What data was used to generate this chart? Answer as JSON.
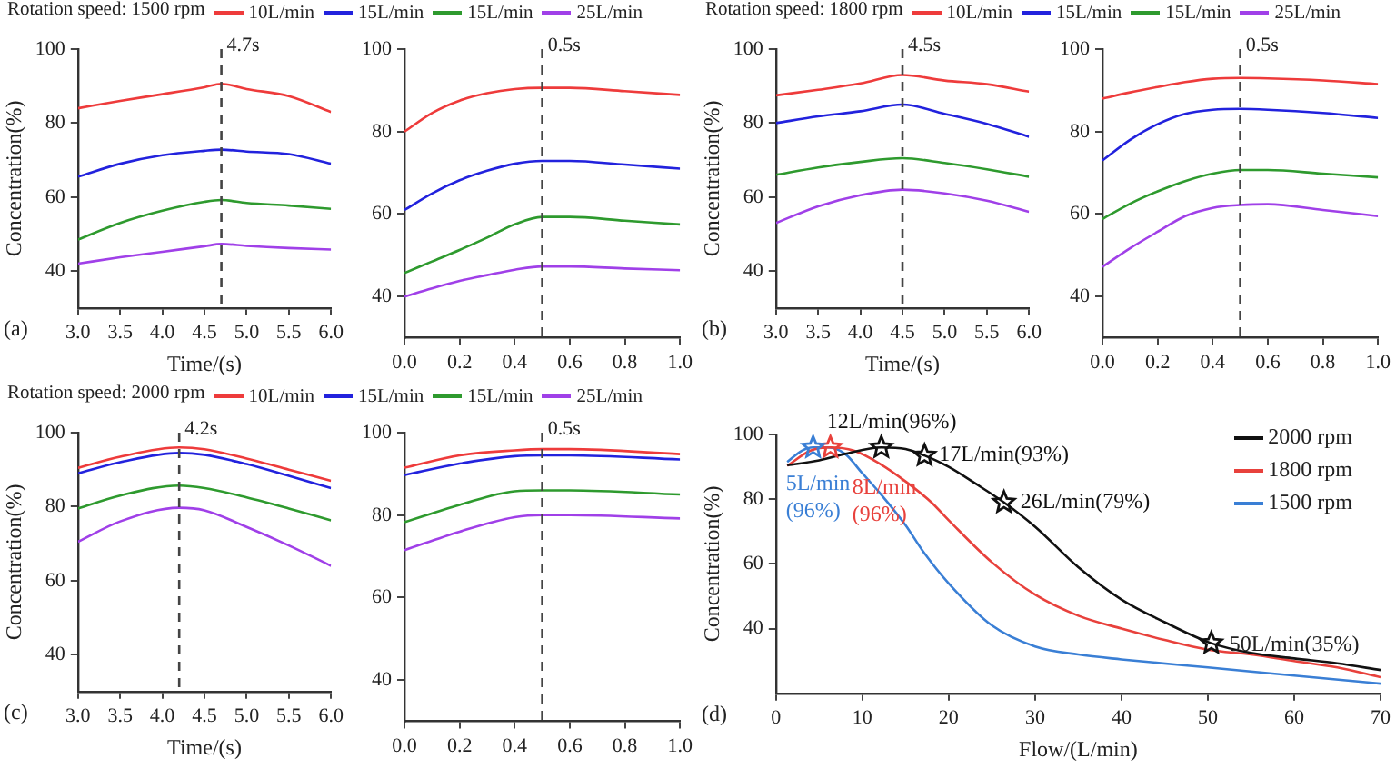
{
  "chart_data": [
    {
      "type": "line",
      "title": "Rotation speed: 1500 rpm",
      "xlabel": "Time/(s)",
      "ylabel": "Concentration(%)",
      "legend": "top",
      "grid": false,
      "annotations": [
        "(a)"
      ],
      "x": [
        3,
        3.5,
        4,
        4.5,
        4.7,
        5,
        5.5,
        6
      ],
      "xlim": [
        3,
        6
      ],
      "xticks": [
        {
          "value": 3,
          "label": "3.0"
        },
        {
          "value": 3.5,
          "label": "3.5"
        },
        {
          "value": 4,
          "label": "4.0"
        },
        {
          "value": 4.5,
          "label": "4.5"
        },
        {
          "value": 5,
          "label": "5.0"
        },
        {
          "value": 5.5,
          "label": "5.5"
        },
        {
          "value": 6,
          "label": "6.0"
        }
      ],
      "ylim": [
        30,
        100
      ],
      "yticks": [
        40,
        60,
        80,
        100
      ],
      "ref_lines": [
        {
          "axis": "x",
          "value": 4.7,
          "label": "4.7s",
          "color": "#444444",
          "line_style": "dashed"
        }
      ],
      "series": [
        {
          "name": "10L/min",
          "color": "#ee3b3b",
          "values": [
            84,
            86,
            87.8,
            89.7,
            90.6,
            89.2,
            87.3,
            83
          ]
        },
        {
          "name": "15L/min",
          "color": "#2222dd",
          "values": [
            65.5,
            69,
            71.3,
            72.5,
            72.8,
            72.3,
            71.6,
            69
          ]
        },
        {
          "name": "15L/min",
          "color": "#2e9a2e",
          "values": [
            48.5,
            53,
            56.3,
            58.7,
            59.2,
            58.4,
            57.7,
            56.8
          ]
        },
        {
          "name": "25L/min",
          "color": "#a040e8",
          "values": [
            42,
            43.7,
            45.2,
            46.7,
            47.3,
            46.8,
            46.2,
            45.8
          ]
        }
      ]
    },
    {
      "type": "line",
      "grid": false,
      "x": [
        0,
        0.1,
        0.2,
        0.3,
        0.4,
        0.5,
        0.6,
        0.8,
        1
      ],
      "xlim": [
        0,
        1
      ],
      "xticks": [
        {
          "value": 0,
          "label": "0.0"
        },
        0.2,
        0.4,
        0.6,
        0.8,
        {
          "value": 1,
          "label": "1.0"
        }
      ],
      "ylim": [
        30,
        100
      ],
      "yticks": [
        40,
        60,
        80,
        100
      ],
      "ref_lines": [
        {
          "axis": "x",
          "value": 0.5,
          "label": "0.5s",
          "color": "#444444",
          "line_style": "dashed"
        }
      ],
      "series": [
        {
          "color": "#ee3b3b",
          "values": [
            80,
            84.5,
            87.5,
            89.3,
            90.3,
            90.6,
            90.6,
            89.8,
            88.9
          ]
        },
        {
          "color": "#2222dd",
          "values": [
            61,
            65,
            68.2,
            70.5,
            72.2,
            72.9,
            72.9,
            72,
            71
          ]
        },
        {
          "color": "#2e9a2e",
          "values": [
            45.7,
            48.5,
            51.3,
            54.3,
            57.5,
            59.3,
            59.3,
            58.4,
            57.5
          ]
        },
        {
          "color": "#a040e8",
          "values": [
            40,
            42,
            43.8,
            45.2,
            46.5,
            47.3,
            47.3,
            46.8,
            46.4
          ]
        }
      ]
    },
    {
      "type": "line",
      "title": "Rotation speed: 1800 rpm",
      "xlabel": "Time/(s)",
      "ylabel": "Concentration(%)",
      "legend": "top",
      "grid": false,
      "annotations": [
        "(b)"
      ],
      "x": [
        3,
        3.5,
        4,
        4.5,
        5,
        5.5,
        6
      ],
      "xlim": [
        3,
        6
      ],
      "xticks": [
        {
          "value": 3,
          "label": "3.0"
        },
        {
          "value": 3.5,
          "label": "3.5"
        },
        {
          "value": 4,
          "label": "4.0"
        },
        {
          "value": 4.5,
          "label": "4.5"
        },
        {
          "value": 5,
          "label": "5.0"
        },
        {
          "value": 5.5,
          "label": "5.5"
        },
        {
          "value": 6,
          "label": "6.0"
        }
      ],
      "ylim": [
        30,
        100
      ],
      "yticks": [
        40,
        60,
        80,
        100
      ],
      "ref_lines": [
        {
          "axis": "x",
          "value": 4.5,
          "label": "4.5s",
          "color": "#444444",
          "line_style": "dashed"
        }
      ],
      "series": [
        {
          "name": "10L/min",
          "color": "#ee3b3b",
          "values": [
            87.5,
            89,
            90.7,
            93,
            91.5,
            90.5,
            88.5
          ]
        },
        {
          "name": "15L/min",
          "color": "#2222dd",
          "values": [
            80,
            81.8,
            83.2,
            85,
            82.5,
            79.8,
            76.3
          ]
        },
        {
          "name": "15L/min",
          "color": "#2e9a2e",
          "values": [
            66,
            68,
            69.5,
            70.5,
            69.2,
            67.5,
            65.5
          ]
        },
        {
          "name": "25L/min",
          "color": "#a040e8",
          "values": [
            53,
            57.5,
            60.5,
            62,
            61,
            59,
            56
          ]
        }
      ]
    },
    {
      "type": "line",
      "grid": false,
      "x": [
        0,
        0.1,
        0.2,
        0.3,
        0.4,
        0.5,
        0.6,
        0.8,
        1
      ],
      "xlim": [
        0,
        1
      ],
      "xticks": [
        {
          "value": 0,
          "label": "0.0"
        },
        0.2,
        0.4,
        0.6,
        0.8,
        {
          "value": 1,
          "label": "1.0"
        }
      ],
      "ylim": [
        30,
        100
      ],
      "yticks": [
        40,
        60,
        80,
        100
      ],
      "ref_lines": [
        {
          "axis": "x",
          "value": 0.5,
          "label": "0.5s",
          "color": "#444444",
          "line_style": "dashed"
        }
      ],
      "series": [
        {
          "color": "#ee3b3b",
          "values": [
            88,
            89.5,
            90.8,
            92,
            92.8,
            93,
            92.9,
            92.4,
            91.5
          ]
        },
        {
          "color": "#2222dd",
          "values": [
            73,
            78,
            81.8,
            84.3,
            85.3,
            85.5,
            85.3,
            84.5,
            83.3
          ]
        },
        {
          "color": "#2e9a2e",
          "values": [
            58.8,
            62.5,
            65.5,
            68,
            69.8,
            70.7,
            70.7,
            69.8,
            68.9
          ]
        },
        {
          "color": "#a040e8",
          "values": [
            47.2,
            51.7,
            55.7,
            59.5,
            61.5,
            62.2,
            62.4,
            61,
            59.5
          ]
        }
      ]
    },
    {
      "type": "line",
      "title": "Rotation speed: 2000 rpm",
      "xlabel": "Time/(s)",
      "ylabel": "Concentration(%)",
      "legend": "top",
      "grid": false,
      "annotations": [
        "(c)"
      ],
      "x": [
        3,
        3.5,
        4.2,
        4.5,
        5,
        5.5,
        6
      ],
      "xlim": [
        3,
        6
      ],
      "xticks": [
        {
          "value": 3,
          "label": "3.0"
        },
        {
          "value": 3.5,
          "label": "3.5"
        },
        {
          "value": 4,
          "label": "4.0"
        },
        {
          "value": 4.5,
          "label": "4.5"
        },
        {
          "value": 5,
          "label": "5.0"
        },
        {
          "value": 5.5,
          "label": "5.5"
        },
        {
          "value": 6,
          "label": "6.0"
        }
      ],
      "ylim": [
        30,
        100
      ],
      "yticks": [
        40,
        60,
        80,
        100
      ],
      "ref_lines": [
        {
          "axis": "x",
          "value": 4.2,
          "label": "4.2s",
          "color": "#444444",
          "line_style": "dashed"
        }
      ],
      "series": [
        {
          "name": "10L/min",
          "color": "#ee3b3b",
          "values": [
            90.5,
            93.5,
            96,
            95.5,
            93,
            90,
            87
          ]
        },
        {
          "name": "15L/min",
          "color": "#2222dd",
          "values": [
            89,
            92,
            94.5,
            94,
            91.5,
            88.3,
            85
          ]
        },
        {
          "name": "15L/min",
          "color": "#2e9a2e",
          "values": [
            79.5,
            83,
            85.7,
            85,
            82.5,
            79.5,
            76.3
          ]
        },
        {
          "name": "25L/min",
          "color": "#a040e8",
          "values": [
            70.5,
            76,
            79.7,
            79,
            74.5,
            69.5,
            64
          ]
        }
      ]
    },
    {
      "type": "line",
      "grid": false,
      "x": [
        0,
        0.2,
        0.4,
        0.5,
        0.6,
        1
      ],
      "xlim": [
        0,
        1
      ],
      "xticks": [
        {
          "value": 0,
          "label": "0.0"
        },
        0.2,
        0.4,
        0.6,
        0.8,
        {
          "value": 1,
          "label": "1.0"
        }
      ],
      "ylim": [
        30,
        100
      ],
      "yticks": [
        40,
        60,
        80,
        100
      ],
      "ref_lines": [
        {
          "axis": "x",
          "value": 0.5,
          "label": "0.5s",
          "color": "#444444",
          "line_style": "dashed"
        }
      ],
      "series": [
        {
          "color": "#ee3b3b",
          "values": [
            91.5,
            94.5,
            95.7,
            96,
            96,
            94.8
          ]
        },
        {
          "color": "#2222dd",
          "values": [
            89.7,
            92.5,
            94.3,
            94.5,
            94.5,
            93.5
          ]
        },
        {
          "color": "#2e9a2e",
          "values": [
            78.3,
            82.5,
            85.8,
            86,
            86,
            85
          ]
        },
        {
          "color": "#a040e8",
          "values": [
            71.5,
            76,
            79.5,
            80,
            80,
            79.2
          ]
        }
      ]
    },
    {
      "type": "line",
      "xlabel": "Flow/(L/min)",
      "ylabel": "Concentration(%)",
      "legend": "top right",
      "grid": false,
      "annotations": [
        "(d)",
        {
          "text": "12L/min(96%)",
          "x": 12.2,
          "y": 96
        },
        {
          "text": "17L/min(93%)",
          "x": 17.2,
          "y": 93.5
        },
        {
          "text": "26L/min(79%)",
          "x": 26.4,
          "y": 79
        },
        {
          "text": "50L/min(35%)",
          "x": 50.4,
          "y": 35
        },
        {
          "text": "5L/min\n(96%)",
          "x": 4.3,
          "y": 96
        },
        {
          "text": "8L/min\n(96%)",
          "x": 6.3,
          "y": 96
        }
      ],
      "xlim": [
        0,
        70
      ],
      "xticks": [
        0,
        10,
        20,
        30,
        40,
        50,
        60,
        70
      ],
      "ylim": [
        20,
        100
      ],
      "yticks": [
        40,
        60,
        80,
        100
      ],
      "series": [
        {
          "name": "2000 rpm",
          "color": "#111111",
          "x": [
            1.3,
            5,
            8,
            12.2,
            15,
            17.2,
            20,
            23,
            26.4,
            30,
            35,
            40,
            45,
            50.4,
            55,
            60,
            65,
            70
          ],
          "values": [
            90.5,
            92,
            94,
            96,
            95.5,
            93.5,
            90,
            85,
            79,
            71.5,
            59,
            49,
            42,
            35.5,
            32.5,
            30.8,
            29.3,
            27.2
          ]
        },
        {
          "name": "1800 rpm",
          "color": "#e8413c",
          "x": [
            1.3,
            4,
            6.3,
            9,
            12,
            15,
            18,
            20,
            25,
            30,
            35,
            40,
            45,
            50,
            55,
            60,
            65,
            70
          ],
          "values": [
            90.3,
            95,
            96,
            95,
            91,
            85.5,
            79,
            73.5,
            60.5,
            50.5,
            44,
            40,
            36.5,
            33.5,
            32,
            30,
            28,
            25
          ]
        },
        {
          "name": "1500 rpm",
          "color": "#3a7fd5",
          "x": [
            1.3,
            3,
            4.3,
            6,
            8,
            10,
            12,
            15,
            17,
            20,
            25,
            30,
            35,
            40,
            50,
            60,
            70
          ],
          "values": [
            91.5,
            95,
            96,
            96,
            94,
            88,
            82,
            72,
            64,
            54,
            41,
            34.5,
            32,
            30.5,
            28,
            25.5,
            23
          ]
        },
        {
          "type": "scatter",
          "marker": "star",
          "color": "#111111",
          "x": [
            12.2,
            17.2,
            26.4,
            50.4
          ],
          "values": [
            96,
            93.5,
            79,
            35.5
          ]
        },
        {
          "type": "scatter",
          "marker": "star",
          "color": "#e8413c",
          "x": [
            6.3
          ],
          "values": [
            96
          ]
        },
        {
          "type": "scatter",
          "marker": "star",
          "color": "#3a7fd5",
          "x": [
            4.3
          ],
          "values": [
            96
          ]
        }
      ]
    }
  ]
}
